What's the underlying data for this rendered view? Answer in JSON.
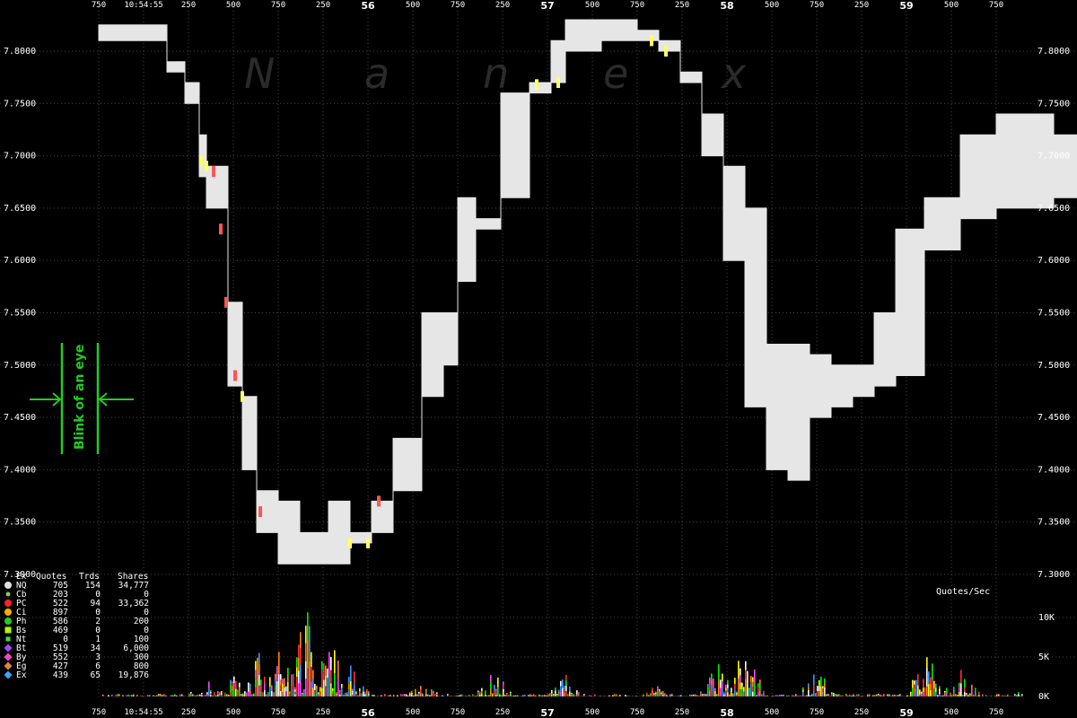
{
  "chart_data": {
    "type": "area",
    "watermark": [
      "N",
      "a",
      "n",
      "e",
      "x"
    ],
    "price_axis": {
      "min": 7.3,
      "max": 7.8,
      "ticks": [
        "7.3000",
        "7.3500",
        "7.4000",
        "7.4500",
        "7.5000",
        "7.5500",
        "7.6000",
        "7.6500",
        "7.7000",
        "7.7500",
        "7.8000"
      ]
    },
    "volume_axis": {
      "label": "Quotes/Sec",
      "ticks": [
        {
          "label": "0K",
          "value": 0
        },
        {
          "label": "5K",
          "value": 5000
        },
        {
          "label": "10K",
          "value": 10000
        }
      ]
    },
    "time_axis": {
      "start_label": "10:54:55",
      "minor_label_position_ms": [
        "750",
        "250",
        "500",
        "750",
        "250",
        "500",
        "750",
        "250",
        "500",
        "750",
        "250",
        "500",
        "750",
        "250",
        "500",
        "750"
      ],
      "major_labels": [
        "56",
        "57",
        "58",
        "59"
      ]
    },
    "nbbo_band": [
      {
        "t": 0.0,
        "hi": 7.825,
        "lo": 7.81
      },
      {
        "t": 0.18,
        "hi": 7.825,
        "lo": 7.81
      },
      {
        "t": 0.19,
        "hi": 7.79,
        "lo": 7.78
      },
      {
        "t": 0.24,
        "hi": 7.77,
        "lo": 7.75
      },
      {
        "t": 0.28,
        "hi": 7.72,
        "lo": 7.68
      },
      {
        "t": 0.3,
        "hi": 7.69,
        "lo": 7.65
      },
      {
        "t": 0.36,
        "hi": 7.56,
        "lo": 7.48
      },
      {
        "t": 0.4,
        "hi": 7.47,
        "lo": 7.4
      },
      {
        "t": 0.44,
        "hi": 7.38,
        "lo": 7.34
      },
      {
        "t": 0.5,
        "hi": 7.37,
        "lo": 7.31
      },
      {
        "t": 0.56,
        "hi": 7.34,
        "lo": 7.31
      },
      {
        "t": 0.64,
        "hi": 7.37,
        "lo": 7.31
      },
      {
        "t": 0.7,
        "hi": 7.34,
        "lo": 7.33
      },
      {
        "t": 0.76,
        "hi": 7.37,
        "lo": 7.34
      },
      {
        "t": 0.82,
        "hi": 7.43,
        "lo": 7.38
      },
      {
        "t": 0.9,
        "hi": 7.55,
        "lo": 7.47
      },
      {
        "t": 0.96,
        "hi": 7.55,
        "lo": 7.5
      },
      {
        "t": 1.0,
        "hi": 7.66,
        "lo": 7.58
      },
      {
        "t": 1.05,
        "hi": 7.64,
        "lo": 7.63
      },
      {
        "t": 1.12,
        "hi": 7.76,
        "lo": 7.66
      },
      {
        "t": 1.2,
        "hi": 7.77,
        "lo": 7.76
      },
      {
        "t": 1.26,
        "hi": 7.81,
        "lo": 7.77
      },
      {
        "t": 1.3,
        "hi": 7.83,
        "lo": 7.8
      },
      {
        "t": 1.4,
        "hi": 7.83,
        "lo": 7.81
      },
      {
        "t": 1.5,
        "hi": 7.82,
        "lo": 7.81
      },
      {
        "t": 1.56,
        "hi": 7.81,
        "lo": 7.8
      },
      {
        "t": 1.62,
        "hi": 7.78,
        "lo": 7.77
      },
      {
        "t": 1.68,
        "hi": 7.74,
        "lo": 7.7
      },
      {
        "t": 1.74,
        "hi": 7.69,
        "lo": 7.6
      },
      {
        "t": 1.8,
        "hi": 7.65,
        "lo": 7.46
      },
      {
        "t": 1.86,
        "hi": 7.52,
        "lo": 7.4
      },
      {
        "t": 1.92,
        "hi": 7.52,
        "lo": 7.39
      },
      {
        "t": 1.98,
        "hi": 7.51,
        "lo": 7.45
      },
      {
        "t": 2.04,
        "hi": 7.5,
        "lo": 7.46
      },
      {
        "t": 2.1,
        "hi": 7.5,
        "lo": 7.47
      },
      {
        "t": 2.16,
        "hi": 7.55,
        "lo": 7.48
      },
      {
        "t": 2.22,
        "hi": 7.63,
        "lo": 7.49
      },
      {
        "t": 2.3,
        "hi": 7.66,
        "lo": 7.61
      },
      {
        "t": 2.4,
        "hi": 7.72,
        "lo": 7.64
      },
      {
        "t": 2.5,
        "hi": 7.74,
        "lo": 7.65
      },
      {
        "t": 2.6,
        "hi": 7.74,
        "lo": 7.65
      },
      {
        "t": 2.66,
        "hi": 7.72,
        "lo": 7.66
      },
      {
        "t": 2.74,
        "hi": 7.71,
        "lo": 7.66
      }
    ],
    "price_end_t": 2.74,
    "trade_marks": [
      {
        "t": 0.285,
        "p": 7.695,
        "color": "#ffff66"
      },
      {
        "t": 0.3,
        "p": 7.69,
        "color": "#ffff66"
      },
      {
        "t": 0.32,
        "p": 7.685,
        "color": "#ff5555"
      },
      {
        "t": 0.34,
        "p": 7.63,
        "color": "#ff5555"
      },
      {
        "t": 0.355,
        "p": 7.56,
        "color": "#ff5555"
      },
      {
        "t": 0.38,
        "p": 7.49,
        "color": "#ff5555"
      },
      {
        "t": 0.4,
        "p": 7.47,
        "color": "#ffff66"
      },
      {
        "t": 0.45,
        "p": 7.36,
        "color": "#ff5555"
      },
      {
        "t": 0.7,
        "p": 7.33,
        "color": "#ffff66"
      },
      {
        "t": 0.75,
        "p": 7.33,
        "color": "#ffff66"
      },
      {
        "t": 0.78,
        "p": 7.37,
        "color": "#ff5555"
      },
      {
        "t": 1.22,
        "p": 7.768,
        "color": "#ffff66"
      },
      {
        "t": 1.28,
        "p": 7.77,
        "color": "#ffff66"
      },
      {
        "t": 1.54,
        "p": 7.81,
        "color": "#ffff66"
      },
      {
        "t": 1.58,
        "p": 7.8,
        "color": "#ffff66"
      }
    ],
    "quote_rate_series_colors": [
      "#ffffff",
      "#ff3333",
      "#00ee00",
      "#ffff00",
      "#ff44ff",
      "#ff8800",
      "#3399ff"
    ],
    "quote_rate_spikes": [
      {
        "t": 0.3,
        "v": 2500
      },
      {
        "t": 0.4,
        "v": 4500
      },
      {
        "t": 0.45,
        "v": 6000
      },
      {
        "t": 0.52,
        "v": 7500
      },
      {
        "t": 0.57,
        "v": 9000
      },
      {
        "t": 0.58,
        "v": 11000
      },
      {
        "t": 0.62,
        "v": 9500
      },
      {
        "t": 0.66,
        "v": 6000
      },
      {
        "t": 0.7,
        "v": 4000
      },
      {
        "t": 0.9,
        "v": 1500
      },
      {
        "t": 1.1,
        "v": 3000
      },
      {
        "t": 1.3,
        "v": 2500
      },
      {
        "t": 1.55,
        "v": 1500
      },
      {
        "t": 1.72,
        "v": 5000
      },
      {
        "t": 1.8,
        "v": 6000
      },
      {
        "t": 2.0,
        "v": 3500
      },
      {
        "t": 2.3,
        "v": 5500
      },
      {
        "t": 2.4,
        "v": 3000
      },
      {
        "t": 2.6,
        "v": 2000
      }
    ],
    "annotation": {
      "text": "Blink of an eye"
    },
    "legend": {
      "headers": [
        "Ex",
        "Quotes",
        "Trds",
        "Shares"
      ],
      "rows": [
        {
          "ex": "NQ",
          "quotes": "705",
          "trds": "154",
          "shares": "34,777",
          "color": "#e0e0e0",
          "shape": "circle"
        },
        {
          "ex": "Cb",
          "quotes": "203",
          "trds": "0",
          "shares": "0",
          "color": "#88cc44",
          "shape": "small-circle"
        },
        {
          "ex": "PC",
          "quotes": "522",
          "trds": "94",
          "shares": "33,362",
          "color": "#ff2222",
          "shape": "circle"
        },
        {
          "ex": "Ci",
          "quotes": "897",
          "trds": "0",
          "shares": "0",
          "color": "#ffaa00",
          "shape": "circle"
        },
        {
          "ex": "Ph",
          "quotes": "586",
          "trds": "2",
          "shares": "200",
          "color": "#22cc22",
          "shape": "circle"
        },
        {
          "ex": "Bs",
          "quotes": "469",
          "trds": "0",
          "shares": "0",
          "color": "#aaff00",
          "shape": "square"
        },
        {
          "ex": "Nt",
          "quotes": "0",
          "trds": "1",
          "shares": "100",
          "color": "#44dd44",
          "shape": "small-square"
        },
        {
          "ex": "Bt",
          "quotes": "519",
          "trds": "34",
          "shares": "6,000",
          "color": "#aa44ff",
          "shape": "diamond"
        },
        {
          "ex": "By",
          "quotes": "552",
          "trds": "3",
          "shares": "300",
          "color": "#ff44cc",
          "shape": "diamond"
        },
        {
          "ex": "Eg",
          "quotes": "427",
          "trds": "6",
          "shares": "800",
          "color": "#dd8833",
          "shape": "diamond"
        },
        {
          "ex": "Ex",
          "quotes": "439",
          "trds": "65",
          "shares": "19,876",
          "color": "#33aaff",
          "shape": "diamond"
        }
      ]
    }
  }
}
